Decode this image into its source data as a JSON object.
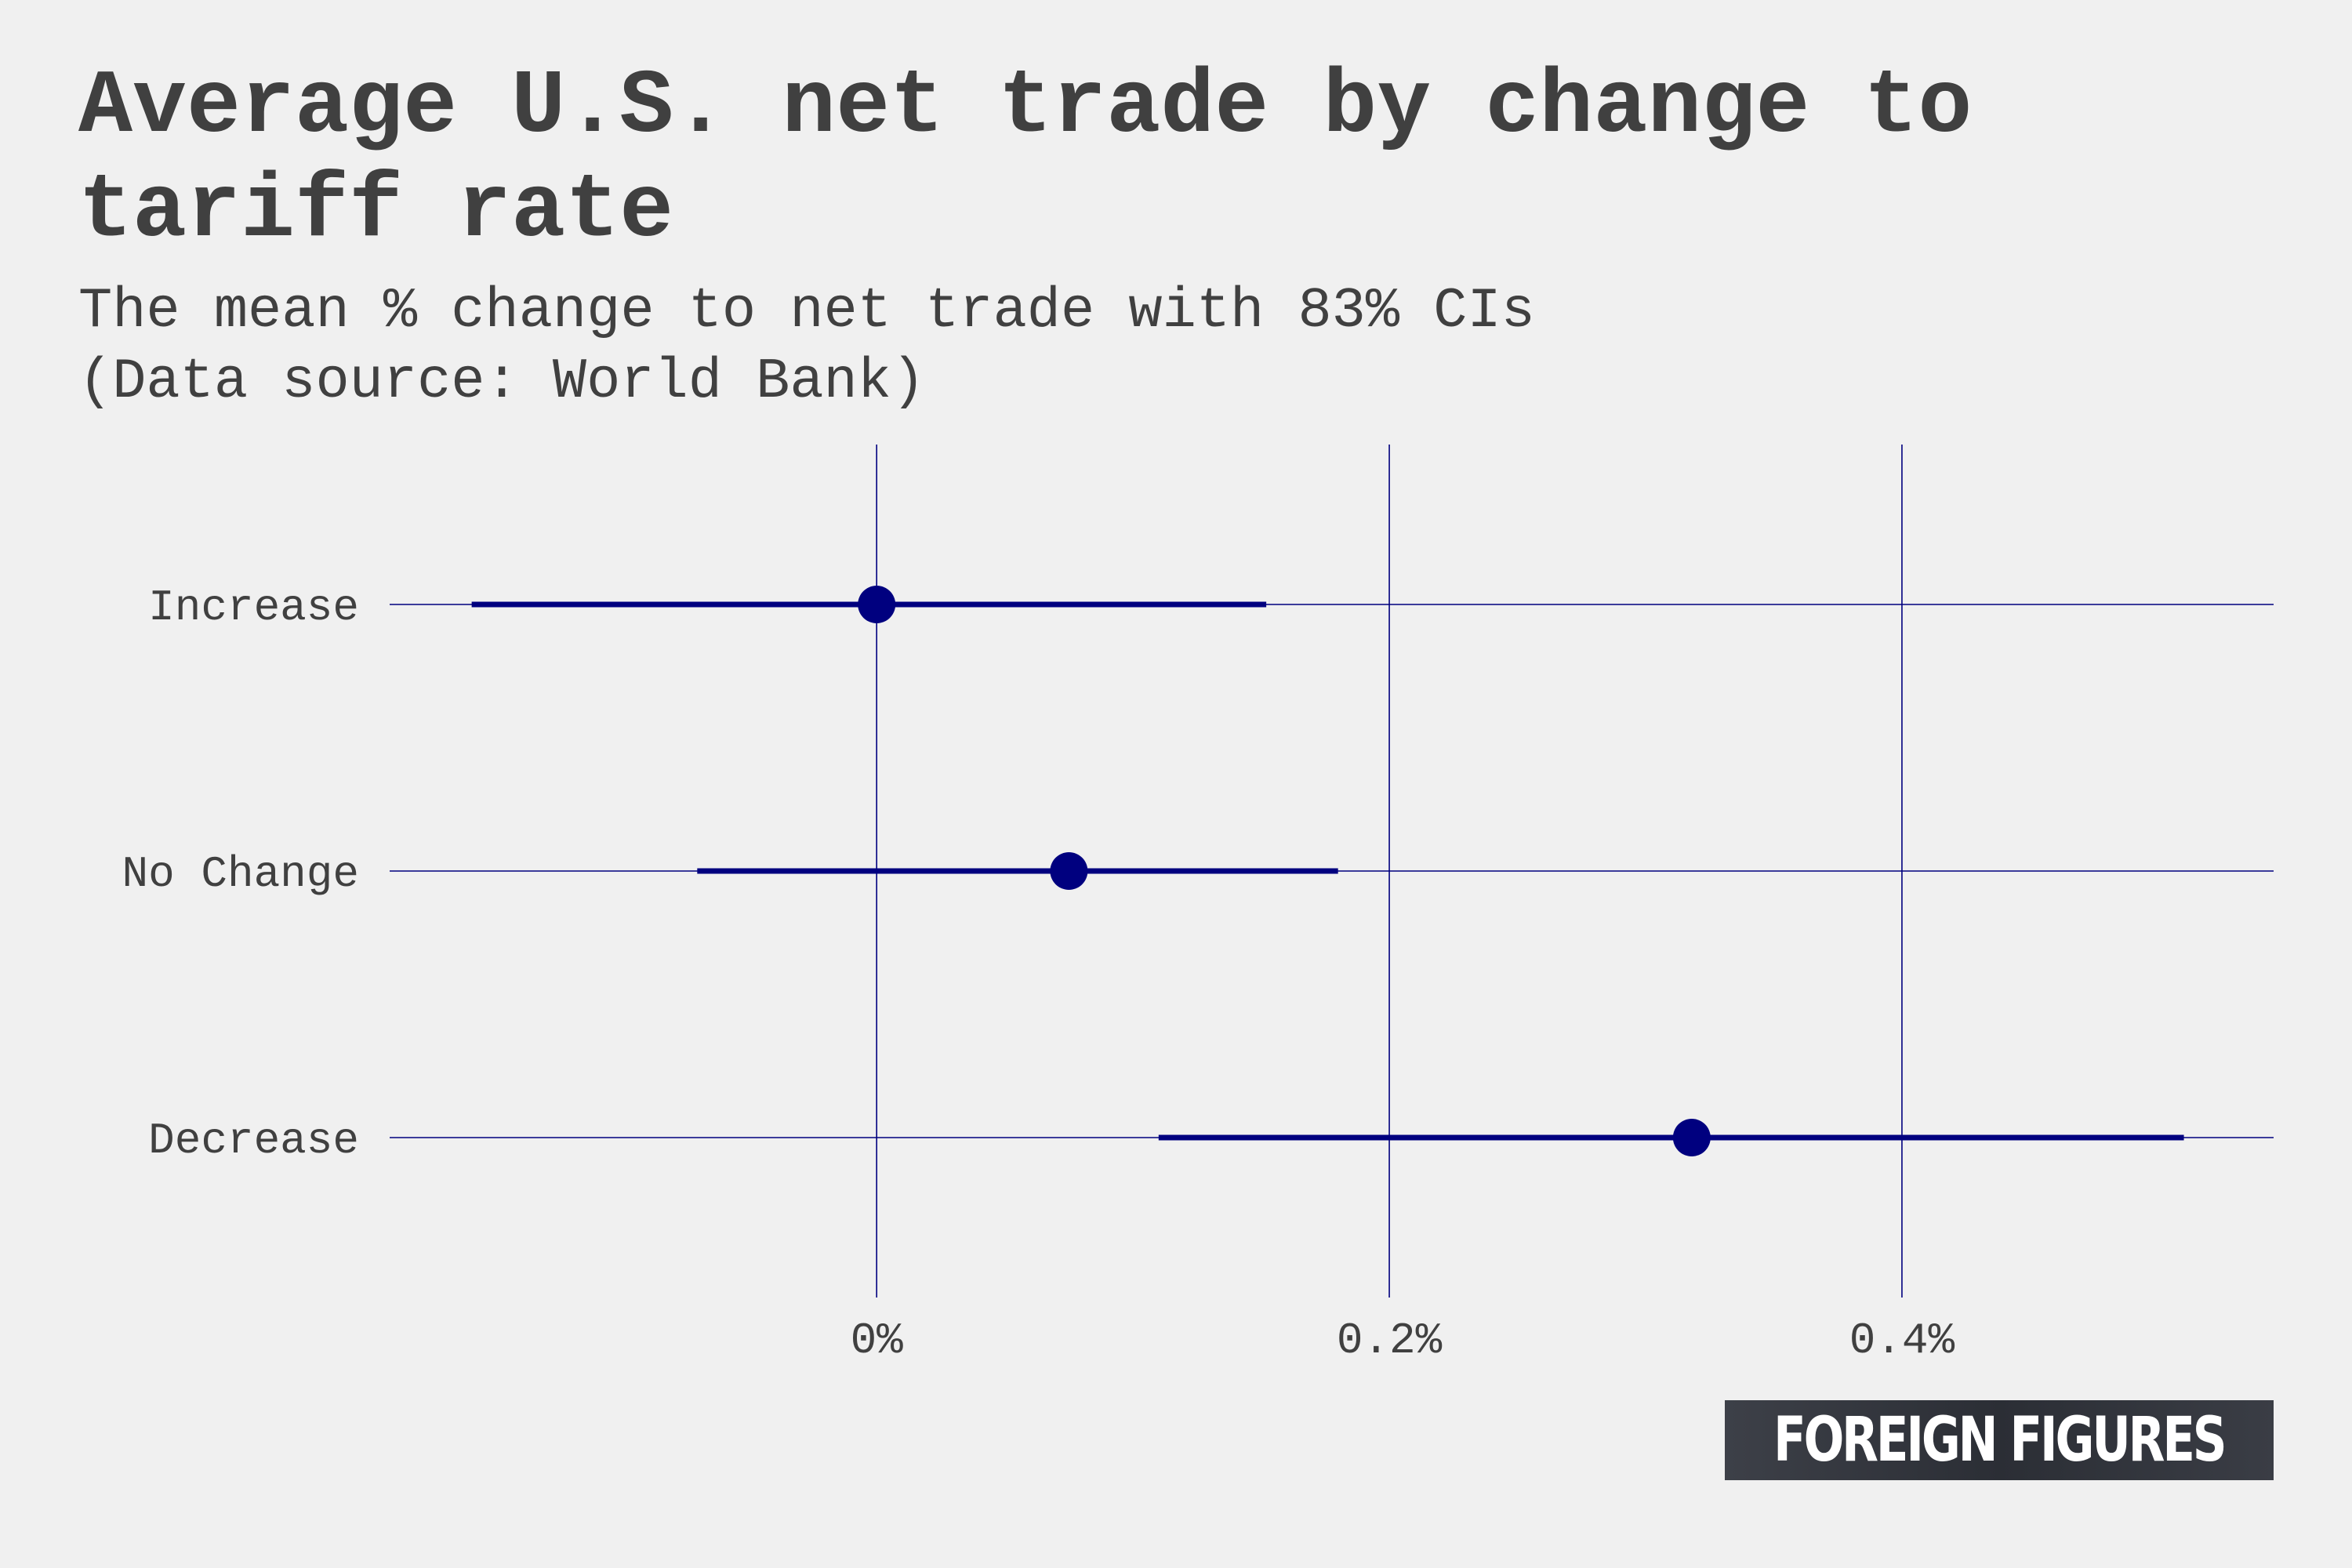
{
  "title": "Average U.S. net trade by change to tariff rate",
  "subtitle_lines": [
    "The mean % change to net trade with 83% CIs",
    "(Data source: World Bank)"
  ],
  "logo_text": "FOREIGN FIGURES",
  "colors": {
    "background": "#f0f0f0",
    "text": "#404040",
    "series": "#00007f",
    "grid": "#00007f"
  },
  "chart_data": {
    "type": "scatter",
    "title": "Average U.S. net trade by change to tariff rate",
    "subtitle": "The mean % change to net trade with 83% CIs (Data source: World Bank)",
    "xlabel": "",
    "ylabel": "",
    "xlim": [
      -0.19,
      0.545
    ],
    "x_ticks": [
      0,
      0.2,
      0.4
    ],
    "x_tick_labels": [
      "0%",
      "0.2%",
      "0.4%"
    ],
    "categories": [
      "Increase",
      "No Change",
      "Decrease"
    ],
    "mean": [
      0.0,
      0.075,
      0.318
    ],
    "ci_low": [
      -0.158,
      -0.07,
      0.11
    ],
    "ci_high": [
      0.152,
      0.18,
      0.51
    ],
    "grid": true,
    "legend": "none"
  }
}
